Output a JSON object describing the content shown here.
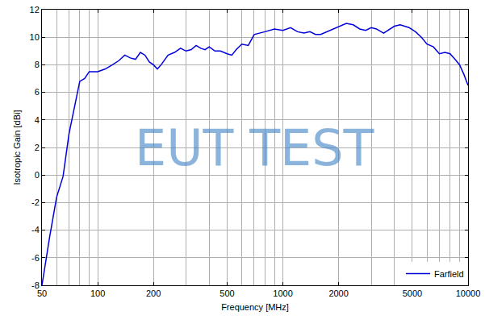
{
  "chart_data": {
    "type": "line",
    "x_label": "Frequency [MHz]",
    "y_label": "Isotropic Gain [dBi]",
    "annotations": [
      "EUT TEST"
    ],
    "log": "x",
    "grid": true,
    "legend": "bottom right",
    "x": [
      50,
      55,
      60,
      65,
      70,
      75,
      80,
      85,
      90,
      100,
      110,
      120,
      130,
      140,
      150,
      160,
      170,
      180,
      190,
      200,
      210,
      220,
      240,
      260,
      280,
      300,
      320,
      340,
      360,
      380,
      400,
      430,
      460,
      500,
      530,
      560,
      600,
      650,
      700,
      800,
      900,
      1000,
      1100,
      1200,
      1300,
      1400,
      1500,
      1600,
      1800,
      2000,
      2200,
      2400,
      2600,
      2800,
      3000,
      3200,
      3500,
      4000,
      4300,
      4800,
      5200,
      5600,
      6000,
      6500,
      7000,
      7500,
      8000,
      8500,
      9000,
      9500,
      10000
    ],
    "series": [
      {
        "name": "Farfield",
        "color": "#0000dd",
        "line_style": "solid",
        "values": [
          -8,
          -4.5,
          -1.6,
          -0.1,
          3,
          5,
          6.8,
          7,
          7.5,
          7.5,
          7.7,
          8.0,
          8.3,
          8.7,
          8.5,
          8.4,
          8.9,
          8.7,
          8.2,
          8.0,
          7.7,
          8.0,
          8.7,
          8.9,
          9.2,
          9.0,
          9.1,
          9.4,
          9.2,
          9.1,
          9.3,
          9.0,
          9.0,
          8.8,
          8.7,
          9.1,
          9.5,
          9.4,
          10.2,
          10.4,
          10.6,
          10.5,
          10.7,
          10.4,
          10.3,
          10.4,
          10.2,
          10.2,
          10.5,
          10.8,
          11.0,
          10.9,
          10.6,
          10.5,
          10.7,
          10.6,
          10.3,
          10.8,
          10.9,
          10.7,
          10.4,
          10.0,
          9.5,
          9.3,
          8.8,
          8.9,
          8.8,
          8.4,
          8.0,
          7.3,
          6.5
        ]
      }
    ],
    "xlim": [
      50,
      10000
    ],
    "ylim": [
      -8,
      12
    ],
    "xticks": [
      50,
      100,
      200,
      500,
      1000,
      2000,
      5000,
      10000
    ],
    "yticks": [
      -8,
      -6,
      -4,
      -2,
      0,
      2,
      4,
      6,
      8,
      10,
      12
    ]
  }
}
